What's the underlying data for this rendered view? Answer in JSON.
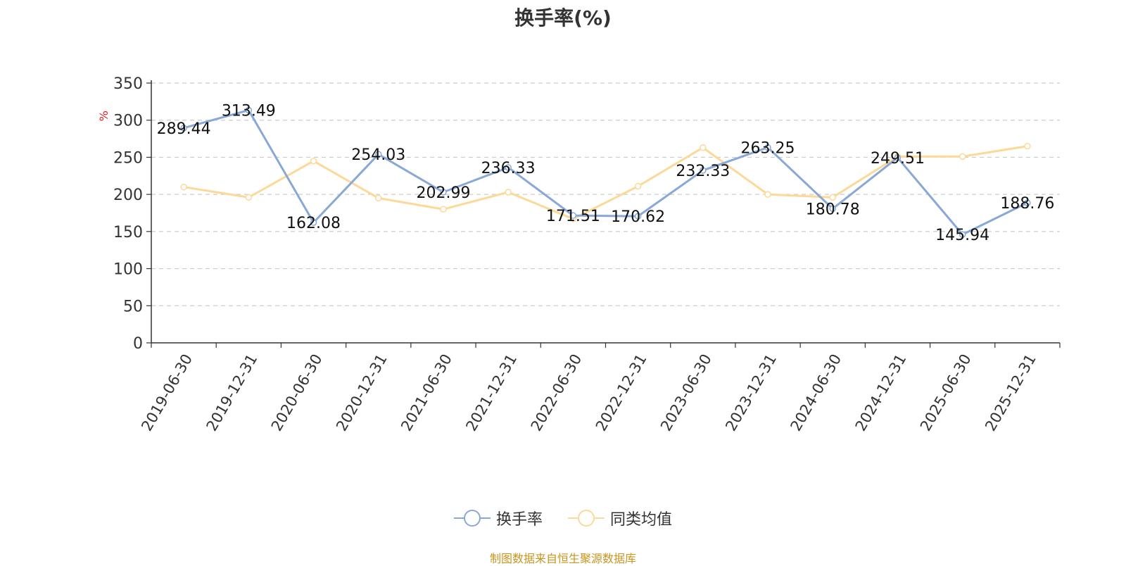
{
  "chart_data": {
    "type": "line",
    "title": "换手率(%)",
    "ylabel": "%",
    "xlabel": "",
    "ylim": [
      0,
      350
    ],
    "yticks": [
      0,
      50,
      100,
      150,
      200,
      250,
      300,
      350
    ],
    "grid": true,
    "legend_placement": "bottom-center",
    "categories": [
      "2019-06-30",
      "2019-12-31",
      "2020-06-30",
      "2020-12-31",
      "2021-06-30",
      "2021-12-31",
      "2022-06-30",
      "2022-12-31",
      "2023-06-30",
      "2023-12-31",
      "2024-06-30",
      "2024-12-31",
      "2025-06-30",
      "2025-12-31"
    ],
    "series": [
      {
        "name": "换手率",
        "color": "#8aa8d6",
        "show_labels": true,
        "values": [
          289.44,
          313.49,
          162.08,
          254.03,
          202.99,
          236.33,
          171.51,
          170.62,
          232.33,
          263.25,
          180.78,
          249.51,
          145.94,
          188.76
        ],
        "labels": [
          "289.44",
          "313.49",
          "162.08",
          "254.03",
          "202.99",
          "236.33",
          "171.51",
          "170.62",
          "232.33",
          "263.25",
          "180.78",
          "249.51",
          "145.94",
          "188.76"
        ]
      },
      {
        "name": "同类均值",
        "color": "#fbd999",
        "show_labels": false,
        "values": [
          210,
          196,
          245,
          195,
          180,
          203,
          167,
          211,
          263,
          200,
          196,
          251,
          251,
          265
        ]
      }
    ]
  },
  "source_note": "制图数据来自恒生聚源数据库"
}
